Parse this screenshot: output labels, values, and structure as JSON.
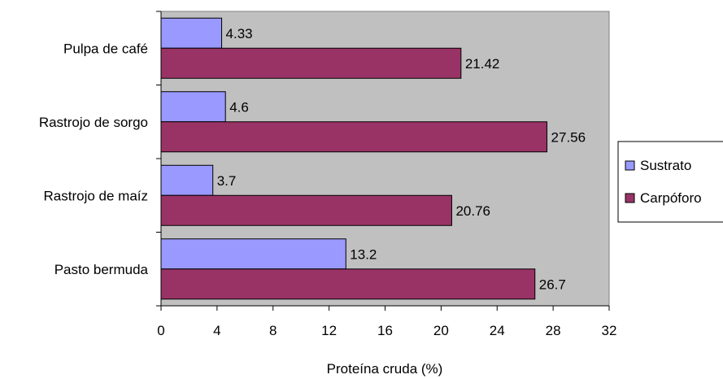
{
  "chart_data": {
    "type": "bar",
    "orientation": "horizontal",
    "categories": [
      "Pulpa de café",
      "Rastrojo de sorgo",
      "Rastrojo de maíz",
      "Pasto bermuda"
    ],
    "series": [
      {
        "name": "Sustrato",
        "values": [
          4.33,
          4.6,
          3.7,
          13.2
        ],
        "color": "#9999FF"
      },
      {
        "name": "Carpóforo",
        "values": [
          21.42,
          27.56,
          20.76,
          26.7
        ],
        "color": "#993366"
      }
    ],
    "xlabel": "Proteína cruda (%)",
    "ylabel": "",
    "xlim": [
      0,
      32
    ],
    "xticks": [
      0,
      4,
      8,
      12,
      16,
      20,
      24,
      28,
      32
    ],
    "grid": false,
    "plot_background": "#C0C0C0",
    "legend_position": "right"
  }
}
